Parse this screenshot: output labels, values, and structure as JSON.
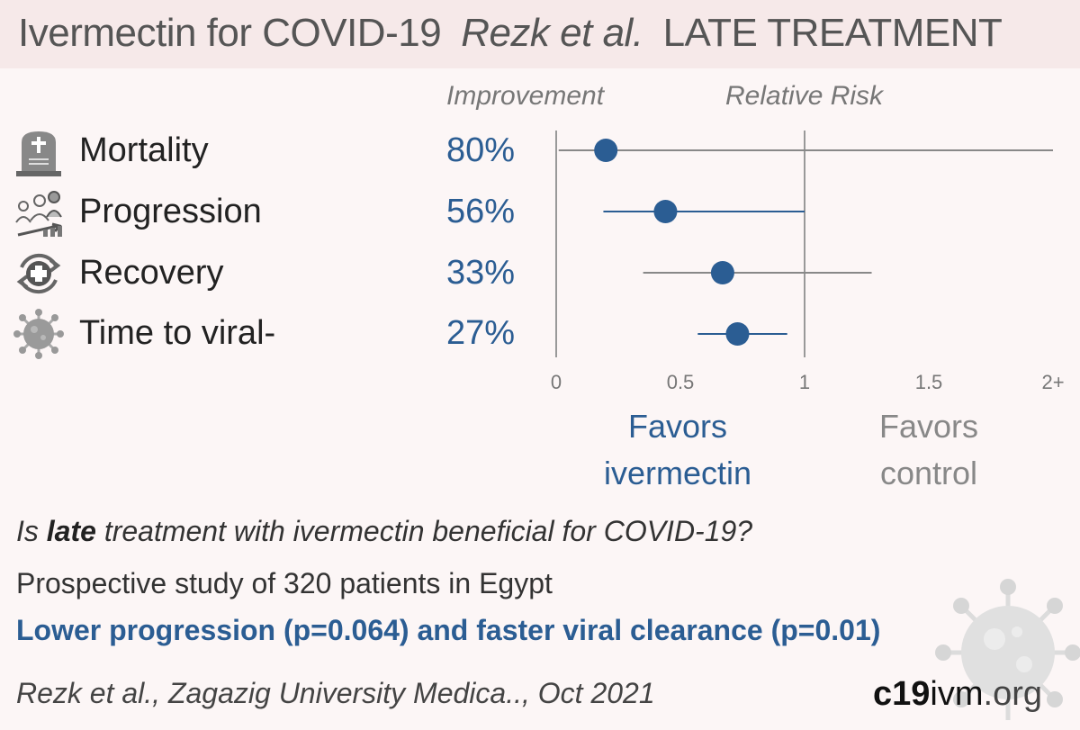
{
  "header": {
    "title": "Ivermectin for COVID-19",
    "authors": "Rezk et al.",
    "stage": "LATE TREATMENT"
  },
  "columns": {
    "improvement": "Improvement",
    "relative_risk": "Relative Risk"
  },
  "favors": {
    "left": [
      "Favors",
      "ivermectin"
    ],
    "right": [
      "Favors",
      "control"
    ]
  },
  "colors": {
    "accent": "#2b5d93",
    "ci_gray": "#888888",
    "header_bg": "#f6e9e9",
    "page_bg": "#fcf6f6"
  },
  "chart_data": {
    "type": "forest",
    "xlim": [
      0,
      2
    ],
    "ticks": [
      {
        "value": 0,
        "label": "0"
      },
      {
        "value": 0.5,
        "label": "0.5"
      },
      {
        "value": 1,
        "label": "1"
      },
      {
        "value": 1.5,
        "label": "1.5"
      },
      {
        "value": 2,
        "label": "2+"
      }
    ],
    "rows": [
      {
        "label": "Mortality",
        "improvement": "80%",
        "rr": 0.2,
        "ci": [
          0.01,
          2.0
        ],
        "ci_color": "gray",
        "icon": "tombstone-icon"
      },
      {
        "label": "Progression",
        "improvement": "56%",
        "rr": 0.44,
        "ci": [
          0.19,
          1.0
        ],
        "ci_color": "blue",
        "icon": "progression-icon"
      },
      {
        "label": "Recovery",
        "improvement": "33%",
        "rr": 0.67,
        "ci": [
          0.35,
          1.27
        ],
        "ci_color": "gray",
        "icon": "recovery-icon"
      },
      {
        "label": "Time to viral-",
        "improvement": "27%",
        "rr": 0.73,
        "ci": [
          0.57,
          0.93
        ],
        "ci_color": "blue",
        "icon": "virus-icon"
      }
    ]
  },
  "summary": {
    "question_pre": "Is ",
    "question_bold": "late",
    "question_post": " treatment with ivermectin beneficial for COVID-19?",
    "design": "Prospective study of 320 patients in Egypt",
    "result": "Lower progression (p=0.064) and faster viral clearance (p=0.01)",
    "citation": "Rezk et al., Zagazig University Medica.., Oct 2021"
  },
  "brand": {
    "bold": "c19",
    "rest": "ivm",
    "domain": ".org"
  }
}
